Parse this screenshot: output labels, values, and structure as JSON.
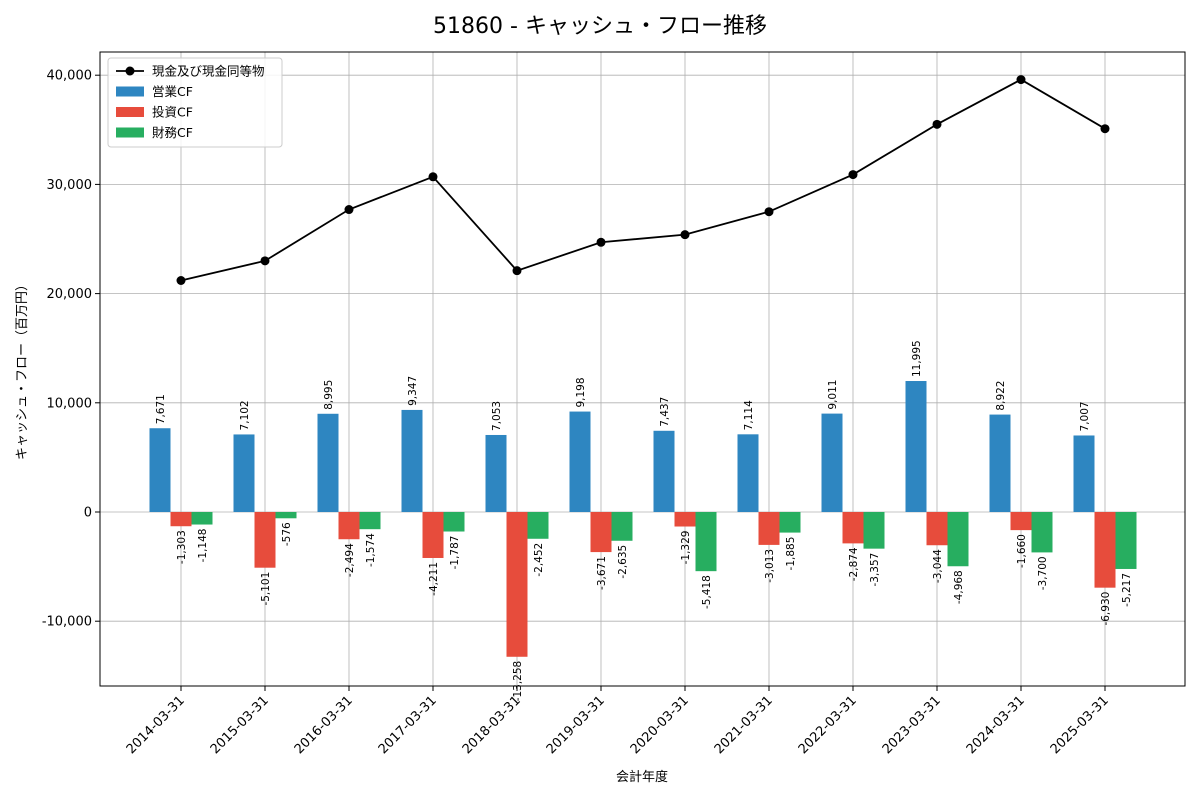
{
  "chart_data": {
    "type": "bar",
    "title": "51860 - キャッシュ・フロー推移",
    "xlabel": "会計年度",
    "ylabel": "キャッシュ・フロー（百万円）",
    "ylim": [
      -16000,
      42500
    ],
    "yticks": [
      -10000,
      0,
      10000,
      20000,
      30000,
      40000
    ],
    "ytick_labels": [
      "-10,000",
      "0",
      "10,000",
      "20,000",
      "30,000",
      "40,000"
    ],
    "grid": true,
    "legend_position": "top-left",
    "categories": [
      "2014-03-31",
      "2015-03-31",
      "2016-03-31",
      "2017-03-31",
      "2018-03-31",
      "2019-03-31",
      "2020-03-31",
      "2021-03-31",
      "2022-03-31",
      "2023-03-31",
      "2024-03-31",
      "2025-03-31"
    ],
    "series": [
      {
        "name": "営業CF",
        "kind": "bar",
        "color": "#2e86c1",
        "values": [
          7671,
          7102,
          8995,
          9347,
          7053,
          9198,
          7437,
          7114,
          9011,
          11995,
          8922,
          7007
        ],
        "labels": [
          "7,671",
          "7,102",
          "8,995",
          "9,347",
          "7,053",
          "9,198",
          "7,437",
          "7,114",
          "9,011",
          "11,995",
          "8,922",
          "7,007"
        ]
      },
      {
        "name": "投資CF",
        "kind": "bar",
        "color": "#e74c3c",
        "values": [
          -1303,
          -5101,
          -2494,
          -4211,
          -13258,
          -3671,
          -1329,
          -3013,
          -2874,
          -3044,
          -1660,
          -6930
        ],
        "labels": [
          "-1,303",
          "-5,101",
          "-2,494",
          "-4,211",
          "-13,258",
          "-3,671",
          "-1,329",
          "-3,013",
          "-2,874",
          "-3,044",
          "-1,660",
          "-6,930"
        ]
      },
      {
        "name": "財務CF",
        "kind": "bar",
        "color": "#27ae60",
        "values": [
          -1148,
          -576,
          -1574,
          -1787,
          -2452,
          -2635,
          -5418,
          -1885,
          -3357,
          -4968,
          -3700,
          -5217
        ],
        "labels": [
          "-1,148",
          "-576",
          "-1,574",
          "-1,787",
          "-2,452",
          "-2,635",
          "-5,418",
          "-1,885",
          "-3,357",
          "-4,968",
          "-3,700",
          "-5,217"
        ]
      },
      {
        "name": "現金及び現金同等物",
        "kind": "line",
        "color": "#000000",
        "values": [
          21200,
          23000,
          27700,
          30700,
          22100,
          24700,
          25400,
          27500,
          30900,
          35500,
          39600,
          35100
        ]
      }
    ]
  }
}
